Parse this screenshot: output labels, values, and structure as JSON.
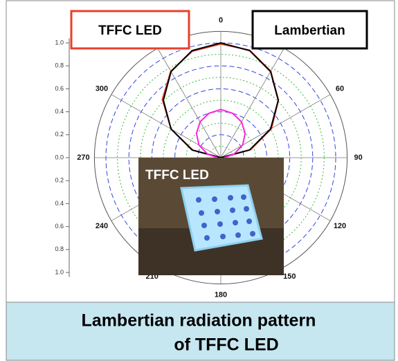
{
  "chart_data": {
    "type": "polar",
    "theta": [
      -90,
      -75,
      -60,
      -45,
      -30,
      -15,
      0,
      15,
      30,
      45,
      60,
      75,
      90
    ],
    "series": [
      {
        "name": "TFFC LED",
        "color": "#e8402a",
        "values": [
          0,
          0.25,
          0.5,
          0.72,
          0.87,
          0.96,
          0.99,
          0.97,
          0.87,
          0.71,
          0.51,
          0.27,
          0
        ]
      },
      {
        "name": "Lambertian",
        "color": "#000000",
        "values": [
          0,
          0.259,
          0.5,
          0.707,
          0.866,
          0.966,
          1,
          0.966,
          0.866,
          0.707,
          0.5,
          0.259,
          0
        ]
      },
      {
        "color": "#ff22dd",
        "values": [
          0.03,
          0.12,
          0.22,
          0.3,
          0.36,
          0.4,
          0.42,
          0.4,
          0.36,
          0.3,
          0.22,
          0.12,
          0.03
        ]
      }
    ],
    "rlim": [
      0,
      1.1
    ],
    "rticks_upper": [
      {
        "value": 1,
        "label": "1.0"
      },
      {
        "value": 0.8,
        "label": "0.8"
      },
      {
        "value": 0.6,
        "label": "0.6"
      },
      {
        "value": 0.4,
        "label": "0.4"
      },
      {
        "value": 0.2,
        "label": "0.2"
      },
      {
        "value": 0,
        "label": "0.0"
      }
    ],
    "rticks_lower": [
      {
        "value": 0.2,
        "label": "0.2"
      },
      {
        "value": 0.4,
        "label": "0.4"
      },
      {
        "value": 0.6,
        "label": "0.6"
      },
      {
        "value": 0.8,
        "label": "0.8"
      },
      {
        "value": 1,
        "label": "1.0"
      }
    ],
    "thetaticks": [
      0,
      60,
      90,
      120,
      150,
      180,
      210,
      240,
      270,
      300
    ],
    "grid": true
  },
  "inset": {
    "label": "TFFC LED"
  },
  "caption": {
    "lines": [
      "Lambertian radiation pattern",
      "of TFFC LED"
    ]
  }
}
